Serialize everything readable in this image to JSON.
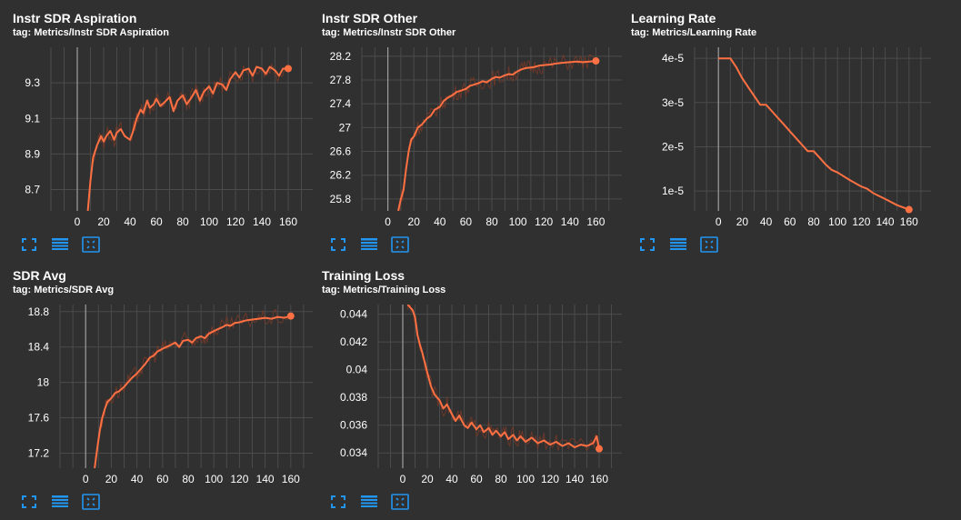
{
  "colors": {
    "background": "#303030",
    "grid": "#4b4b4b",
    "axis": "#9e9e9e",
    "series": "#ff7043",
    "series_raw": "#7a3b28",
    "toolbar_icon": "#2196f3"
  },
  "toolbar": {
    "icons": [
      "fullscreen-icon",
      "data-table-icon",
      "fit-domain-icon"
    ]
  },
  "chart_data": [
    {
      "type": "line",
      "title": "Instr SDR Aspiration",
      "tag": "tag: Metrics/Instr SDR Aspiration",
      "xlim": [
        -20,
        180
      ],
      "ylim": [
        8.58,
        9.5
      ],
      "x_ticks": [
        0,
        20,
        40,
        60,
        80,
        100,
        120,
        140,
        160
      ],
      "y_ticks": [
        8.7,
        8.9,
        9.1,
        9.3
      ],
      "y_tick_labels": [
        "8.7",
        "8.9",
        "9.1",
        "9.3"
      ],
      "series": [
        {
          "x": [
            8,
            10,
            12,
            15,
            18,
            20,
            22,
            25,
            28,
            30,
            33,
            36,
            40,
            42,
            45,
            48,
            50,
            53,
            55,
            58,
            60,
            63,
            66,
            70,
            73,
            76,
            80,
            83,
            86,
            90,
            93,
            96,
            100,
            103,
            106,
            110,
            113,
            116,
            120,
            123,
            126,
            130,
            133,
            136,
            140,
            143,
            146,
            150,
            153,
            156,
            160
          ],
          "y": [
            8.58,
            8.75,
            8.88,
            8.95,
            9.0,
            8.97,
            9.0,
            9.03,
            8.98,
            9.02,
            9.04,
            9.0,
            8.98,
            9.02,
            9.1,
            9.15,
            9.13,
            9.2,
            9.16,
            9.18,
            9.21,
            9.17,
            9.19,
            9.22,
            9.14,
            9.2,
            9.23,
            9.18,
            9.21,
            9.26,
            9.2,
            9.25,
            9.28,
            9.24,
            9.3,
            9.29,
            9.26,
            9.32,
            9.36,
            9.33,
            9.37,
            9.38,
            9.34,
            9.39,
            9.38,
            9.35,
            9.39,
            9.37,
            9.34,
            9.38,
            9.38
          ]
        }
      ]
    },
    {
      "type": "line",
      "title": "Instr SDR Other",
      "tag": "tag: Metrics/Instr SDR Other",
      "xlim": [
        -20,
        180
      ],
      "ylim": [
        25.6,
        28.35
      ],
      "x_ticks": [
        0,
        20,
        40,
        60,
        80,
        100,
        120,
        140,
        160
      ],
      "y_ticks": [
        25.8,
        26.2,
        26.6,
        27,
        27.4,
        27.8,
        28.2
      ],
      "y_tick_labels": [
        "25.8",
        "26.2",
        "26.6",
        "27",
        "27.4",
        "27.8",
        "28.2"
      ],
      "series": [
        {
          "x": [
            8,
            10,
            12,
            14,
            16,
            18,
            20,
            23,
            26,
            30,
            33,
            36,
            40,
            43,
            46,
            50,
            53,
            56,
            60,
            63,
            66,
            70,
            73,
            76,
            80,
            83,
            86,
            90,
            93,
            96,
            100,
            103,
            106,
            110,
            113,
            116,
            120,
            125,
            130,
            135,
            140,
            145,
            150,
            155,
            160
          ],
          "y": [
            25.6,
            25.8,
            25.95,
            26.3,
            26.6,
            26.8,
            26.85,
            27.0,
            27.05,
            27.15,
            27.2,
            27.3,
            27.35,
            27.45,
            27.5,
            27.55,
            27.6,
            27.62,
            27.65,
            27.7,
            27.72,
            27.75,
            27.78,
            27.76,
            27.82,
            27.85,
            27.84,
            27.88,
            27.9,
            27.89,
            27.95,
            27.98,
            28.0,
            28.01,
            28.02,
            28.04,
            28.05,
            28.06,
            28.08,
            28.09,
            28.1,
            28.11,
            28.1,
            28.11,
            28.12
          ]
        }
      ]
    },
    {
      "type": "line",
      "title": "Learning Rate",
      "tag": "tag: Metrics/Learning Rate",
      "xlim": [
        -20,
        180
      ],
      "ylim": [
        5.5e-06,
        4.25e-05
      ],
      "x_ticks": [
        0,
        20,
        40,
        60,
        80,
        100,
        120,
        140,
        160
      ],
      "y_ticks": [
        1e-05,
        2e-05,
        3e-05,
        4e-05
      ],
      "y_tick_labels": [
        "1e-5",
        "2e-5",
        "3e-5",
        "4e-5"
      ],
      "series": [
        {
          "x": [
            0,
            10,
            15,
            20,
            25,
            30,
            35,
            40,
            45,
            50,
            55,
            60,
            65,
            70,
            75,
            80,
            85,
            90,
            95,
            100,
            110,
            120,
            125,
            130,
            140,
            150,
            160
          ],
          "y": [
            4e-05,
            4e-05,
            3.8e-05,
            3.55e-05,
            3.35e-05,
            3.15e-05,
            2.95e-05,
            2.95e-05,
            2.8e-05,
            2.65e-05,
            2.5e-05,
            2.35e-05,
            2.2e-05,
            2.05e-05,
            1.9e-05,
            1.9e-05,
            1.75e-05,
            1.6e-05,
            1.48e-05,
            1.42e-05,
            1.25e-05,
            1.1e-05,
            1.05e-05,
            9.5e-06,
            8.2e-06,
            6.8e-06,
            5.8e-06
          ]
        }
      ]
    },
    {
      "type": "line",
      "title": "SDR Avg",
      "tag": "tag: Metrics/SDR Avg",
      "xlim": [
        -20,
        180
      ],
      "ylim": [
        17.03,
        18.88
      ],
      "x_ticks": [
        0,
        20,
        40,
        60,
        80,
        100,
        120,
        140,
        160
      ],
      "y_ticks": [
        17.2,
        17.6,
        18,
        18.4,
        18.8
      ],
      "y_tick_labels": [
        "17.2",
        "17.6",
        "18",
        "18.4",
        "18.8"
      ],
      "series": [
        {
          "x": [
            7,
            9,
            11,
            13,
            15,
            17,
            20,
            23,
            26,
            30,
            33,
            36,
            40,
            43,
            46,
            50,
            53,
            56,
            60,
            63,
            66,
            70,
            73,
            76,
            80,
            83,
            86,
            90,
            93,
            96,
            100,
            103,
            106,
            110,
            113,
            116,
            120,
            125,
            130,
            135,
            140,
            145,
            150,
            155,
            160
          ],
          "y": [
            17.03,
            17.25,
            17.45,
            17.6,
            17.7,
            17.78,
            17.82,
            17.88,
            17.9,
            17.95,
            18.0,
            18.05,
            18.1,
            18.15,
            18.2,
            18.28,
            18.3,
            18.35,
            18.38,
            18.4,
            18.42,
            18.45,
            18.4,
            18.47,
            18.48,
            18.45,
            18.5,
            18.52,
            18.5,
            18.55,
            18.58,
            18.6,
            18.62,
            18.65,
            18.64,
            18.67,
            18.68,
            18.7,
            18.71,
            18.72,
            18.73,
            18.72,
            18.74,
            18.73,
            18.75
          ]
        }
      ]
    },
    {
      "type": "line",
      "title": "Training Loss",
      "tag": "tag: Metrics/Training Loss",
      "xlim": [
        -20,
        180
      ],
      "ylim": [
        0.0329,
        0.0447
      ],
      "x_ticks": [
        0,
        20,
        40,
        60,
        80,
        100,
        120,
        140,
        160
      ],
      "y_ticks": [
        0.034,
        0.036,
        0.038,
        0.04,
        0.042,
        0.044
      ],
      "y_tick_labels": [
        "0.034",
        "0.036",
        "0.038",
        "0.04",
        "0.042",
        "0.044"
      ],
      "series": [
        {
          "x": [
            4,
            6,
            8,
            10,
            12,
            14,
            16,
            18,
            20,
            23,
            26,
            30,
            33,
            36,
            40,
            43,
            46,
            50,
            53,
            56,
            60,
            63,
            66,
            70,
            73,
            76,
            80,
            83,
            86,
            90,
            93,
            96,
            100,
            105,
            110,
            115,
            120,
            125,
            130,
            135,
            140,
            145,
            150,
            155,
            158,
            160
          ],
          "y": [
            0.0447,
            0.0445,
            0.0443,
            0.0438,
            0.0425,
            0.0418,
            0.0412,
            0.0405,
            0.0398,
            0.0388,
            0.0382,
            0.0378,
            0.0372,
            0.0375,
            0.0368,
            0.0363,
            0.0367,
            0.036,
            0.0358,
            0.0362,
            0.0357,
            0.036,
            0.0355,
            0.0358,
            0.0353,
            0.0356,
            0.0352,
            0.0355,
            0.035,
            0.0353,
            0.0349,
            0.0352,
            0.0348,
            0.0351,
            0.0347,
            0.0349,
            0.0346,
            0.0348,
            0.0345,
            0.0347,
            0.0344,
            0.0346,
            0.0345,
            0.0347,
            0.0352,
            0.0343
          ]
        }
      ]
    }
  ]
}
